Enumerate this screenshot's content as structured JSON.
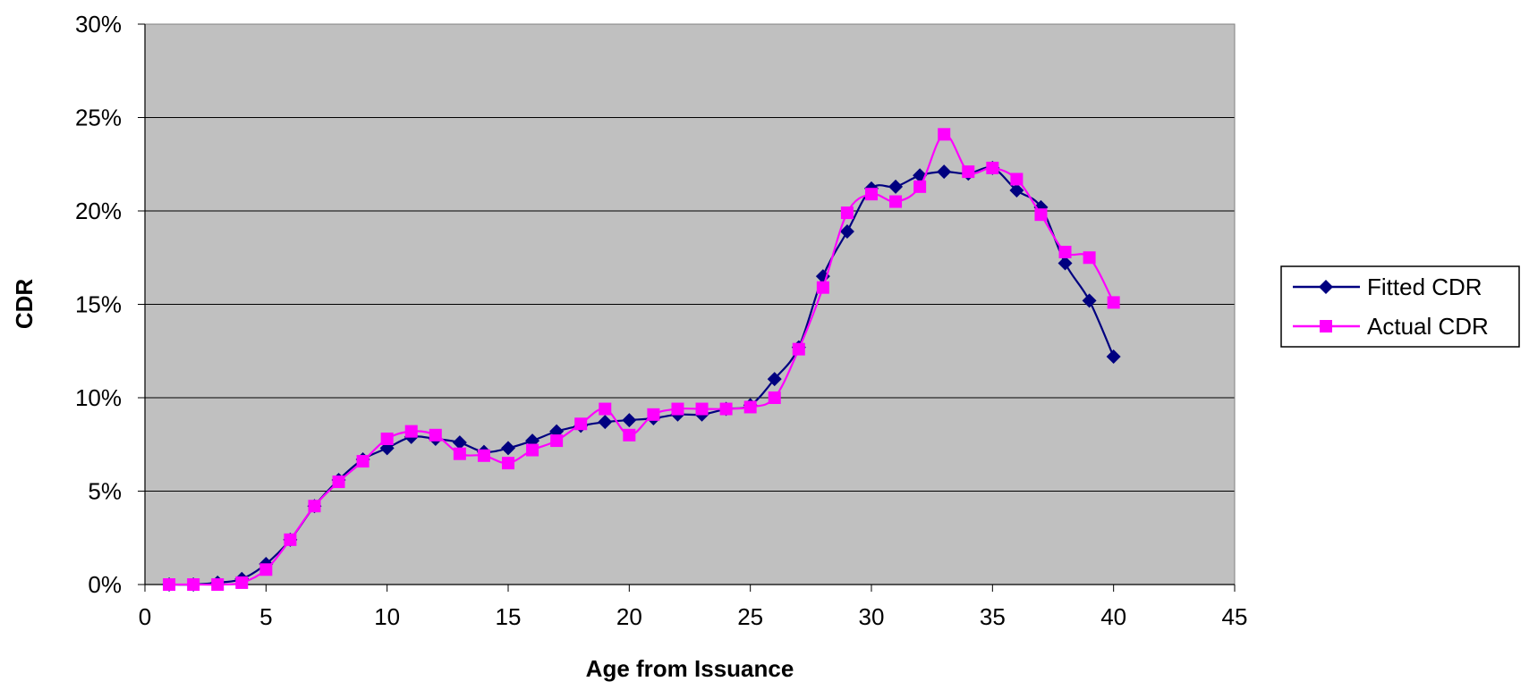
{
  "chart_data": {
    "type": "line",
    "xlabel": "Age from Issuance",
    "ylabel": "CDR",
    "xlim": [
      0,
      45
    ],
    "ylim": [
      0,
      0.3
    ],
    "x_ticks": [
      0,
      5,
      10,
      15,
      20,
      25,
      30,
      35,
      40,
      45
    ],
    "y_ticks": [
      0,
      0.05,
      0.1,
      0.15,
      0.2,
      0.25,
      0.3
    ],
    "x_tick_labels": [
      "0",
      "5",
      "10",
      "15",
      "20",
      "25",
      "30",
      "35",
      "40",
      "45"
    ],
    "y_tick_labels": [
      "0%",
      "5%",
      "10%",
      "15%",
      "20%",
      "25%",
      "30%"
    ],
    "grid": "horizontal",
    "legend_position": "right",
    "plot_background": "#C0C0C0",
    "x": [
      1,
      2,
      3,
      4,
      5,
      6,
      7,
      8,
      9,
      10,
      11,
      12,
      13,
      14,
      15,
      16,
      17,
      18,
      19,
      20,
      21,
      22,
      23,
      24,
      25,
      26,
      27,
      28,
      29,
      30,
      31,
      32,
      33,
      34,
      35,
      36,
      37,
      38,
      39,
      40
    ],
    "series": [
      {
        "name": "Fitted CDR",
        "color": "#000080",
        "marker": "diamond",
        "values": [
          0.0,
          0.0,
          0.001,
          0.003,
          0.011,
          0.024,
          0.042,
          0.056,
          0.067,
          0.073,
          0.079,
          0.078,
          0.076,
          0.071,
          0.073,
          0.077,
          0.082,
          0.085,
          0.087,
          0.088,
          0.089,
          0.091,
          0.091,
          0.094,
          0.096,
          0.11,
          0.127,
          0.165,
          0.189,
          0.212,
          0.213,
          0.219,
          0.221,
          0.22,
          0.223,
          0.211,
          0.202,
          0.172,
          0.152,
          0.122
        ]
      },
      {
        "name": "Actual CDR",
        "color": "#FF00FF",
        "marker": "square",
        "values": [
          0.0,
          0.0,
          0.0,
          0.001,
          0.008,
          0.024,
          0.042,
          0.055,
          0.066,
          0.078,
          0.082,
          0.08,
          0.07,
          0.069,
          0.065,
          0.072,
          0.077,
          0.086,
          0.094,
          0.08,
          0.091,
          0.094,
          0.094,
          0.094,
          0.095,
          0.1,
          0.126,
          0.159,
          0.199,
          0.209,
          0.205,
          0.213,
          0.241,
          0.221,
          0.223,
          0.217,
          0.198,
          0.178,
          0.175,
          0.151
        ]
      }
    ]
  }
}
